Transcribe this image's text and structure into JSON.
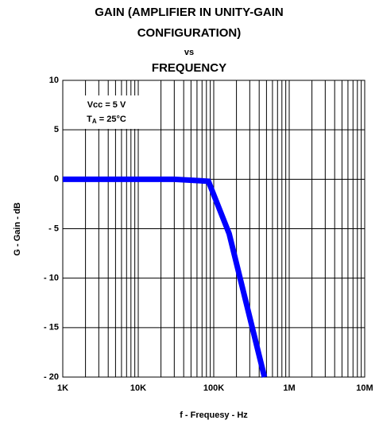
{
  "chart_data": {
    "type": "line",
    "title": [
      "GAIN (AMPLIFIER IN UNITY-GAIN",
      "CONFIGURATION)",
      "vs",
      "FREQUENCY"
    ],
    "x_label": "f - Frequesy - Hz",
    "y_label": "G - Gain - dB",
    "annotation": [
      "Vcc = 5 V",
      [
        "T",
        "A",
        " = 25°C"
      ]
    ],
    "xscale": "log",
    "xlim": [
      1000,
      10000000
    ],
    "xticks": [
      {
        "value": 1000,
        "label": "1K"
      },
      {
        "value": 10000,
        "label": "10K"
      },
      {
        "value": 100000,
        "label": "100K"
      },
      {
        "value": 1000000,
        "label": "1M"
      },
      {
        "value": 10000000,
        "label": "10M"
      }
    ],
    "x_minor_ticks": [
      2000,
      3000,
      4000,
      5000,
      6000,
      7000,
      8000,
      9000,
      20000,
      30000,
      40000,
      50000,
      60000,
      70000,
      80000,
      90000,
      200000,
      300000,
      400000,
      500000,
      600000,
      700000,
      800000,
      900000,
      2000000,
      3000000,
      4000000,
      5000000,
      6000000,
      7000000,
      8000000,
      9000000
    ],
    "ylim": [
      -20,
      10
    ],
    "yticks": [
      {
        "value": -20,
        "label": "- 20"
      },
      {
        "value": -15,
        "label": "- 15"
      },
      {
        "value": -10,
        "label": "- 10"
      },
      {
        "value": -5,
        "label": "- 5"
      },
      0,
      5,
      10
    ],
    "grid": true,
    "series": [
      {
        "color": "#0000ff",
        "x": [
          1000,
          30000,
          85000,
          160000,
          470000
        ],
        "values": [
          0,
          0,
          -0.2,
          -5.5,
          -20
        ]
      }
    ]
  }
}
